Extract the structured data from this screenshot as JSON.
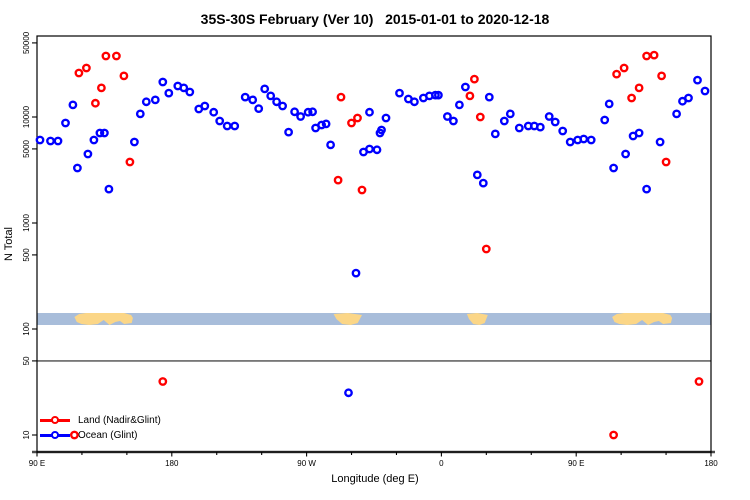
{
  "title": "35S-30S February (Ver 10)   2015-01-01 to 2020-12-18",
  "axes": {
    "x": {
      "label": "Longitude (deg E)",
      "tick_labels": [
        "90 E",
        "180",
        "90 W",
        "0",
        "90 E",
        "180"
      ],
      "tick_lons_extended": [
        90,
        180,
        270,
        360,
        450,
        540
      ],
      "minor_tick_step_deg": 30,
      "range_extended_deg": [
        90,
        540
      ]
    },
    "y": {
      "label": "N Total",
      "scale": "log10",
      "tick_values": [
        50000,
        10000,
        5000,
        1000,
        500,
        100,
        50,
        10
      ],
      "tick_labels": [
        "50000",
        "10000",
        "5000",
        "1000",
        "500",
        "100",
        "50",
        "10"
      ]
    }
  },
  "reference_line_n": 50,
  "legend": [
    {
      "label": "Land (Nadir&Glint)",
      "color": "#ff0000"
    },
    {
      "label": "Ocean (Glint)",
      "color": "#0000ff"
    }
  ],
  "map_strip": {
    "description": "world map band of the 35S-30S latitude zone",
    "ocean_color": "#a8bdda",
    "land_color": "#fbd687",
    "land_patches": [
      {
        "name": "Australia",
        "lon_from": 115,
        "lon_to": 154
      },
      {
        "name": "South America",
        "lon_from": 288,
        "lon_to": 307
      },
      {
        "name": "South Africa",
        "lon_from": 377,
        "lon_to": 391
      },
      {
        "name": "Australia (wrapped)",
        "lon_from": 474,
        "lon_to": 514
      }
    ]
  },
  "chart_data": {
    "type": "scatter",
    "x_units": "longitude deg E, extended 90..540 (axis wraps past 180)",
    "y_units": "N Total (log scale)",
    "series": [
      {
        "name": "Land (Nadir&Glint)",
        "color": "#ff0000",
        "points": [
          [
            136,
            37600
          ],
          [
            143,
            37600
          ],
          [
            118,
            26000
          ],
          [
            123,
            29000
          ],
          [
            133,
            18800
          ],
          [
            148,
            24400
          ],
          [
            129,
            13500
          ],
          [
            152,
            3760
          ],
          [
            293,
            15400
          ],
          [
            300,
            8780
          ],
          [
            304,
            9790
          ],
          [
            291,
            2540
          ],
          [
            307,
            2050
          ],
          [
            382,
            22800
          ],
          [
            379,
            15800
          ],
          [
            386,
            10000
          ],
          [
            390,
            568
          ],
          [
            497,
            37600
          ],
          [
            502,
            38400
          ],
          [
            477,
            25400
          ],
          [
            482,
            29000
          ],
          [
            492,
            18800
          ],
          [
            507,
            24400
          ],
          [
            487,
            15100
          ],
          [
            510,
            3760
          ],
          [
            174,
            32
          ],
          [
            532,
            32
          ],
          [
            475,
            10
          ],
          [
            115,
            10
          ]
        ]
      },
      {
        "name": "Ocean (Glint)",
        "color": "#0000ff",
        "points": [
          [
            114,
            13000
          ],
          [
            109,
            8770
          ],
          [
            92,
            6070
          ],
          [
            99,
            5940
          ],
          [
            104,
            5940
          ],
          [
            128,
            6070
          ],
          [
            132,
            7060
          ],
          [
            135,
            7060
          ],
          [
            124,
            4480
          ],
          [
            117,
            3300
          ],
          [
            138,
            2090
          ],
          [
            155,
            5810
          ],
          [
            159,
            10700
          ],
          [
            163,
            13900
          ],
          [
            174,
            21400
          ],
          [
            169,
            14500
          ],
          [
            178,
            16800
          ],
          [
            184,
            19600
          ],
          [
            188,
            18800
          ],
          [
            192,
            17200
          ],
          [
            198,
            11900
          ],
          [
            202,
            12700
          ],
          [
            208,
            11100
          ],
          [
            212,
            9160
          ],
          [
            217,
            8220
          ],
          [
            222,
            8220
          ],
          [
            229,
            15400
          ],
          [
            234,
            14500
          ],
          [
            238,
            12000
          ],
          [
            242,
            18400
          ],
          [
            246,
            15800
          ],
          [
            250,
            13900
          ],
          [
            254,
            12700
          ],
          [
            262,
            11200
          ],
          [
            266,
            10100
          ],
          [
            271,
            11100
          ],
          [
            274,
            11200
          ],
          [
            258,
            7210
          ],
          [
            276,
            7870
          ],
          [
            280,
            8410
          ],
          [
            283,
            8600
          ],
          [
            286,
            5450
          ],
          [
            308,
            4680
          ],
          [
            312,
            4990
          ],
          [
            317,
            4900
          ],
          [
            312,
            11100
          ],
          [
            319,
            7060
          ],
          [
            303,
            337
          ],
          [
            323,
            9790
          ],
          [
            320,
            7540
          ],
          [
            332,
            16800
          ],
          [
            338,
            14800
          ],
          [
            342,
            13900
          ],
          [
            348,
            15100
          ],
          [
            352,
            15800
          ],
          [
            356,
            16100
          ],
          [
            358,
            16100
          ],
          [
            364,
            10100
          ],
          [
            368,
            9160
          ],
          [
            372,
            13000
          ],
          [
            376,
            19200
          ],
          [
            392,
            15400
          ],
          [
            384,
            2840
          ],
          [
            388,
            2380
          ],
          [
            396,
            6930
          ],
          [
            402,
            9160
          ],
          [
            406,
            10700
          ],
          [
            412,
            7870
          ],
          [
            418,
            8220
          ],
          [
            422,
            8220
          ],
          [
            426,
            8030
          ],
          [
            432,
            10100
          ],
          [
            436,
            8980
          ],
          [
            441,
            7380
          ],
          [
            446,
            5810
          ],
          [
            451,
            6070
          ],
          [
            455,
            6200
          ],
          [
            460,
            6070
          ],
          [
            469,
            9370
          ],
          [
            472,
            13300
          ],
          [
            475,
            3300
          ],
          [
            483,
            4480
          ],
          [
            488,
            6620
          ],
          [
            492,
            7060
          ],
          [
            497,
            2090
          ],
          [
            506,
            5810
          ],
          [
            517,
            10700
          ],
          [
            521,
            14100
          ],
          [
            525,
            15100
          ],
          [
            531,
            22300
          ],
          [
            536,
            17600
          ],
          [
            298,
            25
          ]
        ]
      }
    ]
  },
  "colors": {
    "plot_border": "#000000",
    "reference_line": "#4a4a4a",
    "bottom_axis": "#4a4a4a"
  }
}
